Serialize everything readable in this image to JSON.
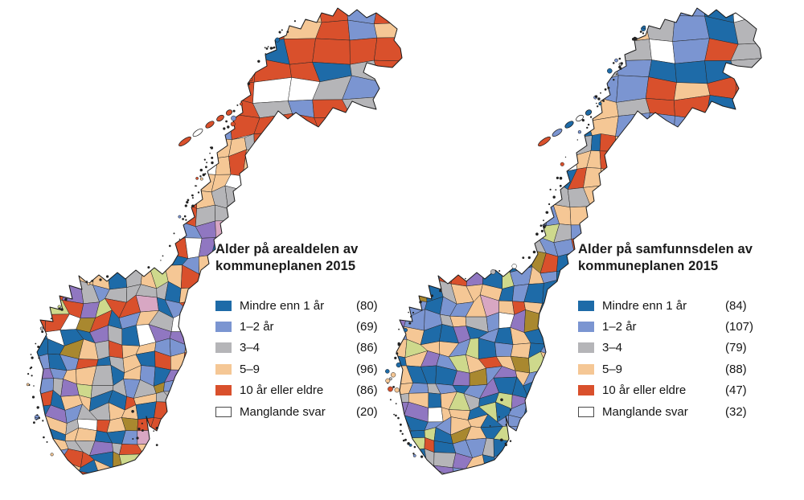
{
  "figure": {
    "background": "#ffffff"
  },
  "maps": [
    {
      "id": "arealdelen",
      "title_line1": "Alder på arealdelen av",
      "title_line2": "kommuneplanen 2015",
      "legend": [
        {
          "label": "Mindre enn 1 år",
          "count": "(80)",
          "color_key": "dark_blue"
        },
        {
          "label": "1–2 år",
          "count": "(69)",
          "color_key": "medium_blue"
        },
        {
          "label": "3–4",
          "count": "(86)",
          "color_key": "gray"
        },
        {
          "label": "5–9",
          "count": "(96)",
          "color_key": "tan"
        },
        {
          "label": "10 år eller eldre",
          "count": "(86)",
          "color_key": "red_orange"
        },
        {
          "label": "Manglande svar",
          "count": "(20)",
          "color_key": "white"
        }
      ]
    },
    {
      "id": "samfunnsdelen",
      "title_line1": "Alder på samfunnsdelen av",
      "title_line2": "kommuneplanen 2015",
      "legend": [
        {
          "label": "Mindre enn 1 år",
          "count": "(84)",
          "color_key": "dark_blue"
        },
        {
          "label": "1–2 år",
          "count": "(107)",
          "color_key": "medium_blue"
        },
        {
          "label": "3–4",
          "count": "(79)",
          "color_key": "gray"
        },
        {
          "label": "5–9",
          "count": "(88)",
          "color_key": "tan"
        },
        {
          "label": "10 år eller eldre",
          "count": "(47)",
          "color_key": "red_orange"
        },
        {
          "label": "Manglande svar",
          "count": "(32)",
          "color_key": "white"
        }
      ]
    }
  ],
  "palette": {
    "dark_blue": "#1e6ba8",
    "medium_blue": "#7b95d1",
    "gray": "#b5b5b8",
    "tan": "#f5c795",
    "red_orange": "#d9502c",
    "white": "#ffffff",
    "mixed_purple": "#9077c1",
    "mixed_olive": "#a9882f",
    "mixed_yellow_green": "#ced98c",
    "mixed_pink": "#d8a7c3",
    "map_border": "#1a1a1a"
  }
}
